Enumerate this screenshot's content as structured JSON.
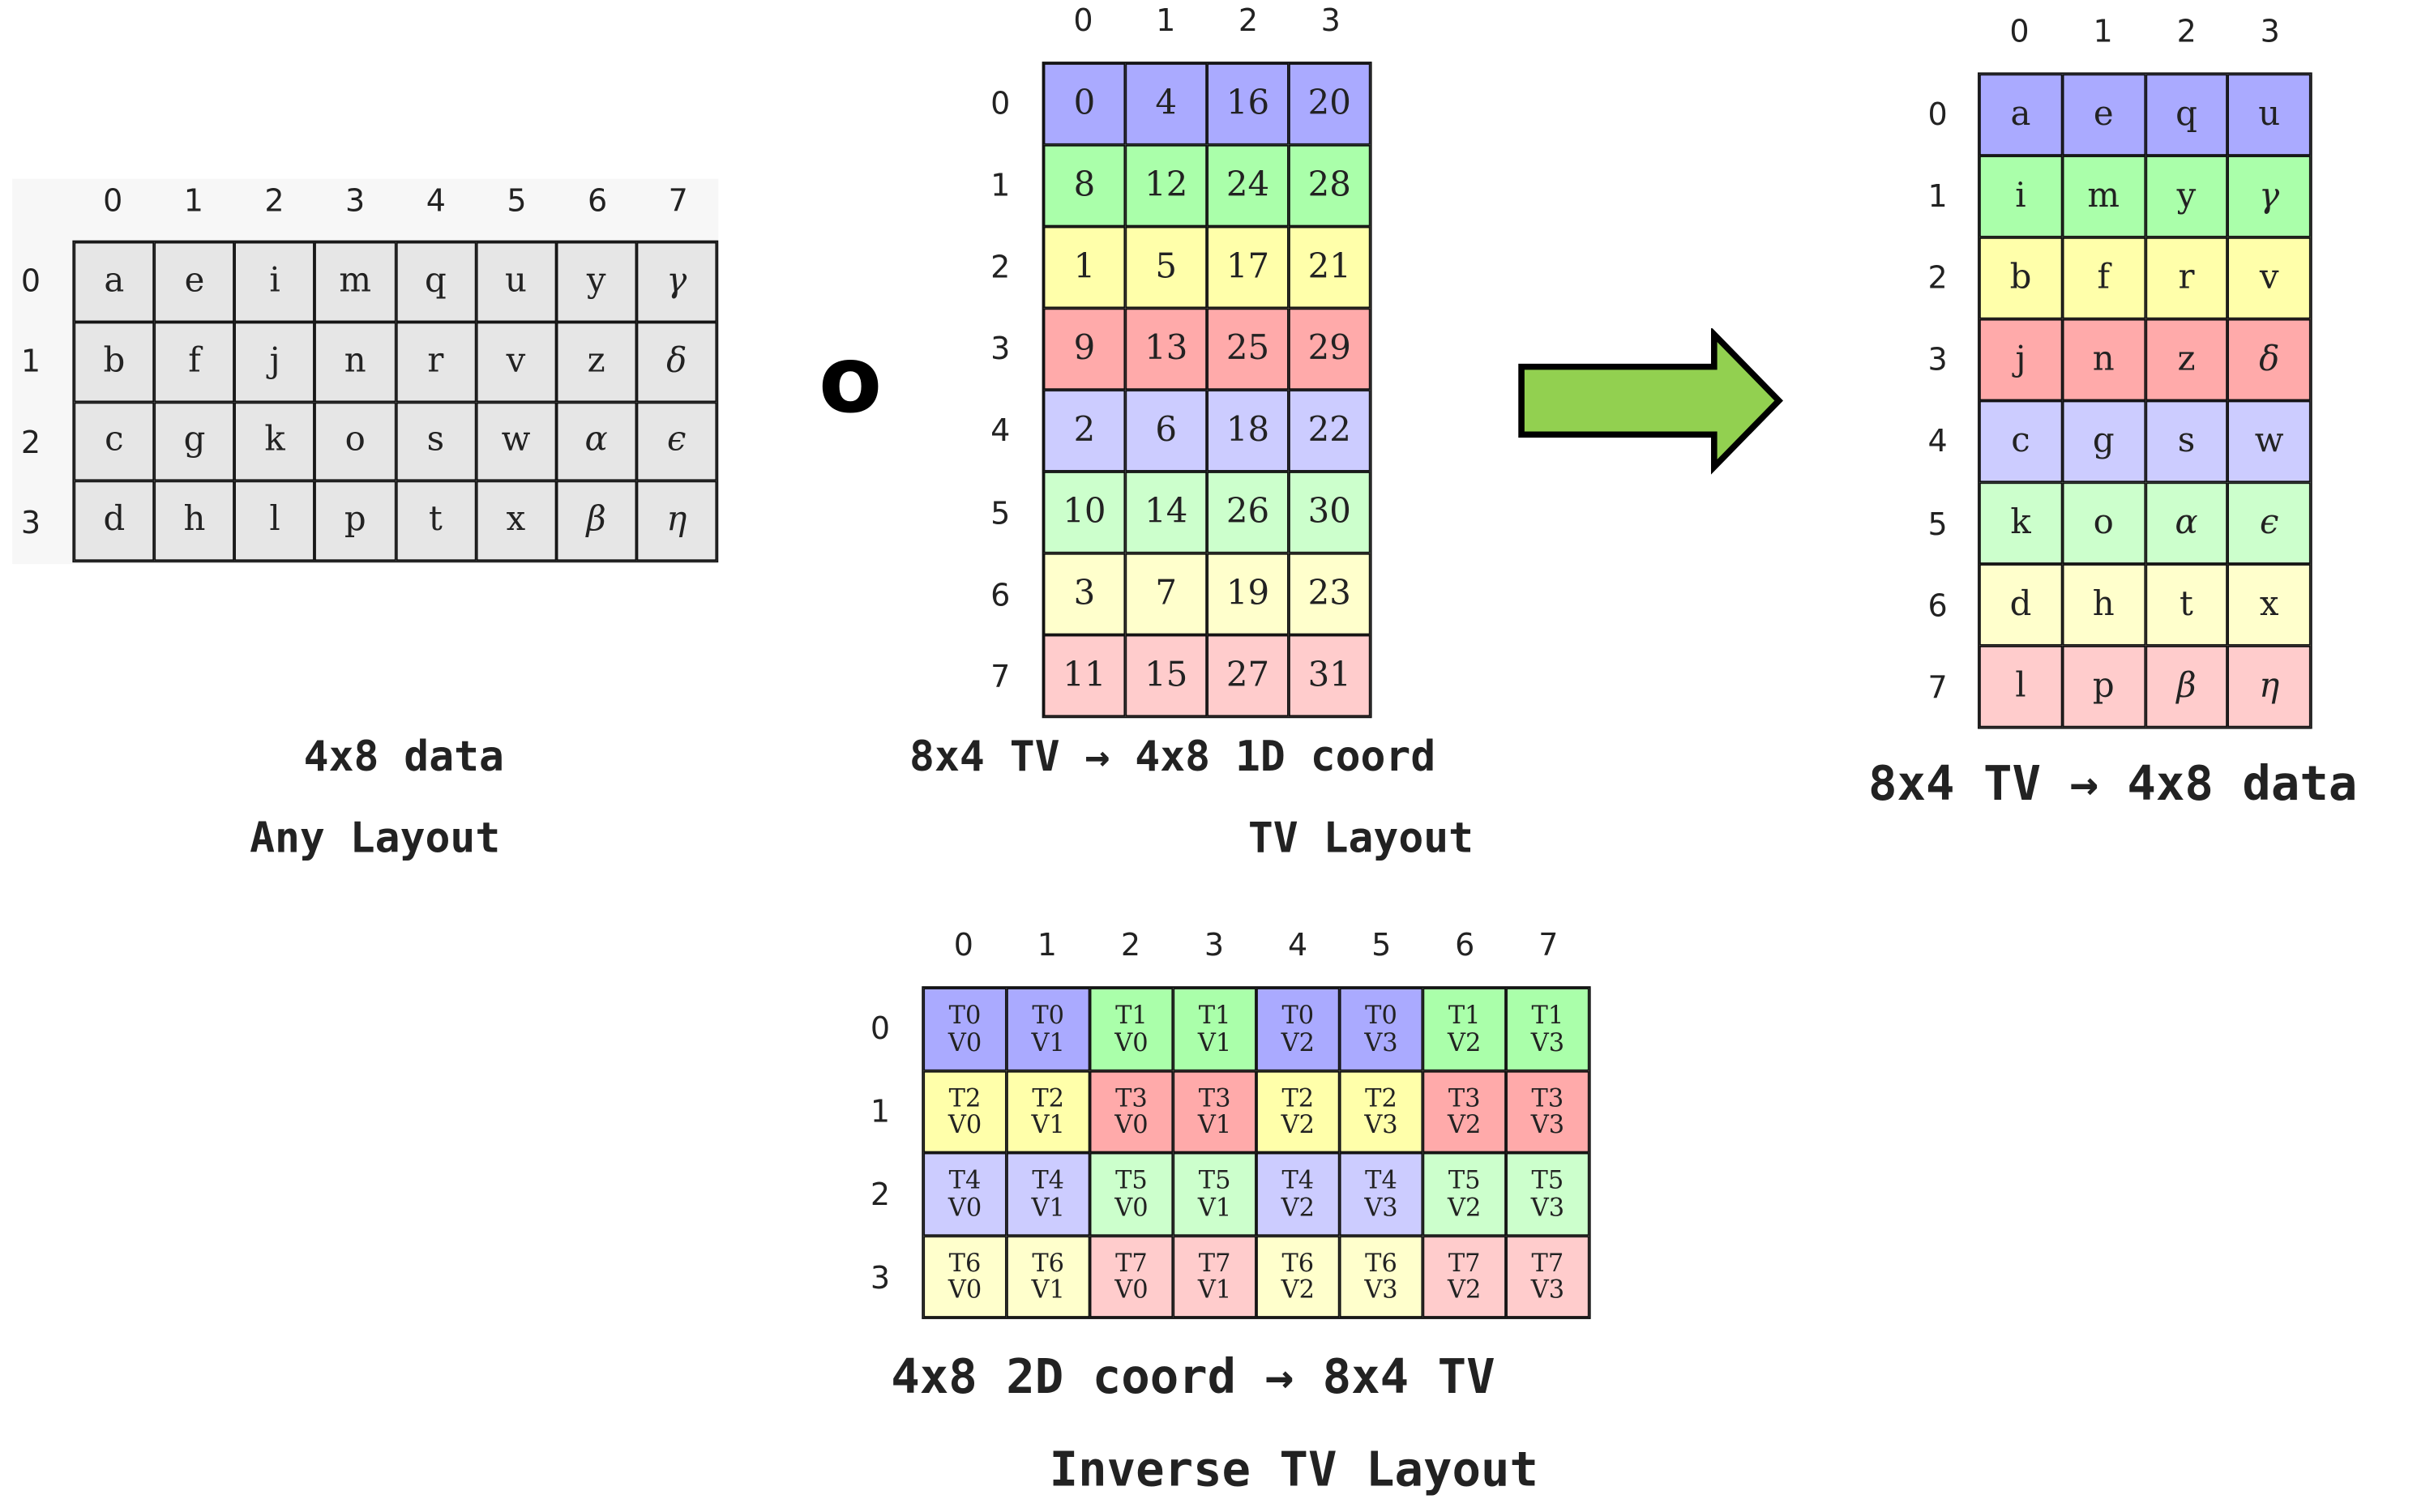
{
  "colors": {
    "gray": "#e6e6e6",
    "blue": "#aaaaff",
    "green": "#aaffaa",
    "yellow": "#ffffaa",
    "red": "#ffaaaa",
    "light_blue": "#ccccff",
    "light_green": "#ccffcc",
    "light_yellow": "#ffffcc",
    "light_red": "#ffcccc",
    "arrow": "#92d050"
  },
  "data_grid": {
    "col_headers": [
      "0",
      "1",
      "2",
      "3",
      "4",
      "5",
      "6",
      "7"
    ],
    "row_headers": [
      "0",
      "1",
      "2",
      "3"
    ],
    "cells": [
      [
        "a",
        "e",
        "i",
        "m",
        "q",
        "u",
        "y",
        "γ"
      ],
      [
        "b",
        "f",
        "j",
        "n",
        "r",
        "v",
        "z",
        "δ"
      ],
      [
        "c",
        "g",
        "k",
        "o",
        "s",
        "w",
        "α",
        "ϵ"
      ],
      [
        "d",
        "h",
        "l",
        "p",
        "t",
        "x",
        "β",
        "η"
      ]
    ],
    "label_1": "4x8 data",
    "label_2": "Any Layout"
  },
  "compose_symbol": "o",
  "tv_grid": {
    "col_headers": [
      "0",
      "1",
      "2",
      "3"
    ],
    "row_headers": [
      "0",
      "1",
      "2",
      "3",
      "4",
      "5",
      "6",
      "7"
    ],
    "cells": [
      [
        "0",
        "4",
        "16",
        "20"
      ],
      [
        "8",
        "12",
        "24",
        "28"
      ],
      [
        "1",
        "5",
        "17",
        "21"
      ],
      [
        "9",
        "13",
        "25",
        "29"
      ],
      [
        "2",
        "6",
        "18",
        "22"
      ],
      [
        "10",
        "14",
        "26",
        "30"
      ],
      [
        "3",
        "7",
        "19",
        "23"
      ],
      [
        "11",
        "15",
        "27",
        "31"
      ]
    ],
    "row_colors": [
      "blue",
      "green",
      "yellow",
      "red",
      "light_blue",
      "light_green",
      "light_yellow",
      "light_red"
    ],
    "label_1": "8x4 TV → 4x8 1D coord",
    "label_2": "TV Layout"
  },
  "result_grid": {
    "col_headers": [
      "0",
      "1",
      "2",
      "3"
    ],
    "row_headers": [
      "0",
      "1",
      "2",
      "3",
      "4",
      "5",
      "6",
      "7"
    ],
    "cells": [
      [
        "a",
        "e",
        "q",
        "u"
      ],
      [
        "i",
        "m",
        "y",
        "γ"
      ],
      [
        "b",
        "f",
        "r",
        "v"
      ],
      [
        "j",
        "n",
        "z",
        "δ"
      ],
      [
        "c",
        "g",
        "s",
        "w"
      ],
      [
        "k",
        "o",
        "α",
        "ϵ"
      ],
      [
        "d",
        "h",
        "t",
        "x"
      ],
      [
        "l",
        "p",
        "β",
        "η"
      ]
    ],
    "row_colors": [
      "blue",
      "green",
      "yellow",
      "red",
      "light_blue",
      "light_green",
      "light_yellow",
      "light_red"
    ],
    "label_1": "8x4 TV → 4x8 data"
  },
  "inverse_grid": {
    "col_headers": [
      "0",
      "1",
      "2",
      "3",
      "4",
      "5",
      "6",
      "7"
    ],
    "row_headers": [
      "0",
      "1",
      "2",
      "3"
    ],
    "cells": [
      [
        [
          "T0",
          "V0"
        ],
        [
          "T0",
          "V1"
        ],
        [
          "T1",
          "V0"
        ],
        [
          "T1",
          "V1"
        ],
        [
          "T0",
          "V2"
        ],
        [
          "T0",
          "V3"
        ],
        [
          "T1",
          "V2"
        ],
        [
          "T1",
          "V3"
        ]
      ],
      [
        [
          "T2",
          "V0"
        ],
        [
          "T2",
          "V1"
        ],
        [
          "T3",
          "V0"
        ],
        [
          "T3",
          "V1"
        ],
        [
          "T2",
          "V2"
        ],
        [
          "T2",
          "V3"
        ],
        [
          "T3",
          "V2"
        ],
        [
          "T3",
          "V3"
        ]
      ],
      [
        [
          "T4",
          "V0"
        ],
        [
          "T4",
          "V1"
        ],
        [
          "T5",
          "V0"
        ],
        [
          "T5",
          "V1"
        ],
        [
          "T4",
          "V2"
        ],
        [
          "T4",
          "V3"
        ],
        [
          "T5",
          "V2"
        ],
        [
          "T5",
          "V3"
        ]
      ],
      [
        [
          "T6",
          "V0"
        ],
        [
          "T6",
          "V1"
        ],
        [
          "T7",
          "V0"
        ],
        [
          "T7",
          "V1"
        ],
        [
          "T6",
          "V2"
        ],
        [
          "T6",
          "V3"
        ],
        [
          "T7",
          "V2"
        ],
        [
          "T7",
          "V3"
        ]
      ]
    ],
    "cell_colors": [
      [
        "blue",
        "blue",
        "green",
        "green",
        "blue",
        "blue",
        "green",
        "green"
      ],
      [
        "yellow",
        "yellow",
        "red",
        "red",
        "yellow",
        "yellow",
        "red",
        "red"
      ],
      [
        "light_blue",
        "light_blue",
        "light_green",
        "light_green",
        "light_blue",
        "light_blue",
        "light_green",
        "light_green"
      ],
      [
        "light_yellow",
        "light_yellow",
        "light_red",
        "light_red",
        "light_yellow",
        "light_yellow",
        "light_red",
        "light_red"
      ]
    ],
    "label_1": "4x8 2D coord → 8x4 TV",
    "label_2": "Inverse TV Layout"
  }
}
